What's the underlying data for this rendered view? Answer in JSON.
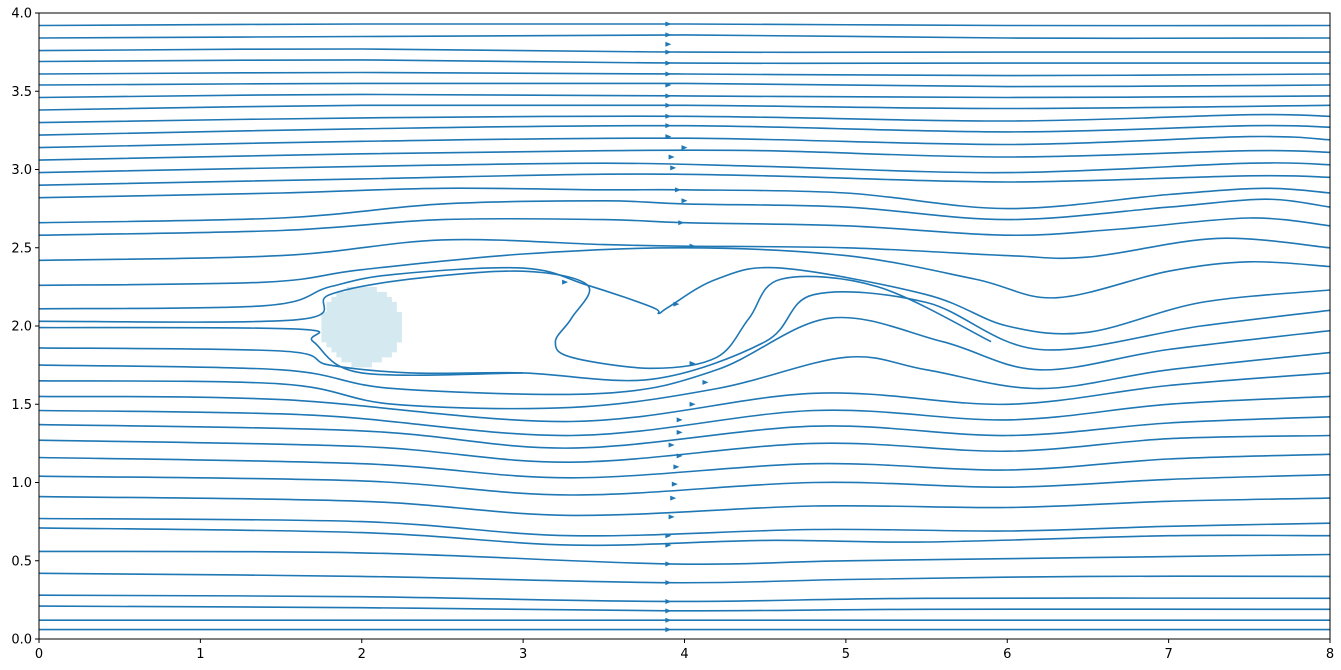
{
  "chart_data": {
    "type": "streamplot",
    "title": "",
    "xlabel": "",
    "ylabel": "",
    "xlim": [
      0,
      8
    ],
    "ylim": [
      0,
      4
    ],
    "xticks": [
      "0",
      "1",
      "2",
      "3",
      "4",
      "5",
      "6",
      "7",
      "8"
    ],
    "yticks": [
      "0.0",
      "0.5",
      "1.0",
      "1.5",
      "2.0",
      "2.5",
      "3.0",
      "3.5",
      "4.0"
    ],
    "grid": false,
    "line_color": "#1f77b4",
    "obstacle": {
      "shape": "circle",
      "center": [
        2.0,
        2.0
      ],
      "radius": 0.25,
      "color": "#d5eaf0"
    },
    "streamlines": [
      [
        [
          0,
          0.06
        ],
        [
          2,
          0.06
        ],
        [
          3.9,
          0.06
        ],
        [
          6,
          0.06
        ],
        [
          8,
          0.06
        ]
      ],
      [
        [
          0,
          0.12
        ],
        [
          2,
          0.12
        ],
        [
          3.9,
          0.12
        ],
        [
          6,
          0.12
        ],
        [
          8,
          0.12
        ]
      ],
      [
        [
          0,
          0.21
        ],
        [
          2,
          0.2
        ],
        [
          3.9,
          0.18
        ],
        [
          5.5,
          0.19
        ],
        [
          8,
          0.19
        ]
      ],
      [
        [
          0,
          0.28
        ],
        [
          2,
          0.27
        ],
        [
          3.9,
          0.24
        ],
        [
          5.5,
          0.26
        ],
        [
          8,
          0.26
        ]
      ],
      [
        [
          0,
          0.42
        ],
        [
          2,
          0.4
        ],
        [
          3.9,
          0.36
        ],
        [
          5,
          0.38
        ],
        [
          6.5,
          0.4
        ],
        [
          8,
          0.4
        ]
      ],
      [
        [
          0,
          0.56
        ],
        [
          2,
          0.55
        ],
        [
          3.9,
          0.48
        ],
        [
          5,
          0.5
        ],
        [
          6.5,
          0.52
        ],
        [
          8,
          0.54
        ]
      ],
      [
        [
          0,
          0.71
        ],
        [
          2,
          0.68
        ],
        [
          3.3,
          0.6
        ],
        [
          4.5,
          0.63
        ],
        [
          5.5,
          0.62
        ],
        [
          7,
          0.66
        ],
        [
          8,
          0.66
        ]
      ],
      [
        [
          0,
          0.77
        ],
        [
          2,
          0.75
        ],
        [
          3.3,
          0.66
        ],
        [
          4.8,
          0.7
        ],
        [
          6,
          0.69
        ],
        [
          7,
          0.72
        ],
        [
          8,
          0.74
        ]
      ],
      [
        [
          0,
          0.91
        ],
        [
          2,
          0.88
        ],
        [
          3.3,
          0.79
        ],
        [
          4.8,
          0.85
        ],
        [
          6,
          0.84
        ],
        [
          7,
          0.88
        ],
        [
          8,
          0.9
        ]
      ],
      [
        [
          0,
          1.04
        ],
        [
          2,
          1.01
        ],
        [
          3.3,
          0.92
        ],
        [
          4.8,
          1.0
        ],
        [
          6,
          0.97
        ],
        [
          7,
          1.02
        ],
        [
          8,
          1.05
        ]
      ],
      [
        [
          0,
          1.16
        ],
        [
          2,
          1.12
        ],
        [
          3.3,
          1.03
        ],
        [
          4.8,
          1.12
        ],
        [
          6,
          1.08
        ],
        [
          7,
          1.15
        ],
        [
          8,
          1.18
        ]
      ],
      [
        [
          0,
          1.27
        ],
        [
          2,
          1.23
        ],
        [
          3.3,
          1.13
        ],
        [
          4.8,
          1.25
        ],
        [
          6,
          1.2
        ],
        [
          7,
          1.28
        ],
        [
          8,
          1.3
        ]
      ],
      [
        [
          0,
          1.37
        ],
        [
          2,
          1.33
        ],
        [
          3.3,
          1.22
        ],
        [
          4.8,
          1.36
        ],
        [
          6,
          1.3
        ],
        [
          7,
          1.38
        ],
        [
          8,
          1.42
        ]
      ],
      [
        [
          0,
          1.46
        ],
        [
          1.7,
          1.43
        ],
        [
          3.3,
          1.3
        ],
        [
          4.8,
          1.46
        ],
        [
          6.0,
          1.4
        ],
        [
          7,
          1.5
        ],
        [
          8,
          1.55
        ]
      ],
      [
        [
          0,
          1.55
        ],
        [
          1.5,
          1.53
        ],
        [
          3.3,
          1.39
        ],
        [
          4.8,
          1.57
        ],
        [
          6.0,
          1.5
        ],
        [
          7,
          1.62
        ],
        [
          8,
          1.7
        ]
      ],
      [
        [
          0,
          1.65
        ],
        [
          1.5,
          1.63
        ],
        [
          2.2,
          1.5
        ],
        [
          3.3,
          1.48
        ],
        [
          4.2,
          1.6
        ],
        [
          5.0,
          1.8
        ],
        [
          5.5,
          1.72
        ],
        [
          6.2,
          1.6
        ],
        [
          7,
          1.72
        ],
        [
          8,
          1.83
        ]
      ],
      [
        [
          0,
          1.75
        ],
        [
          1.5,
          1.72
        ],
        [
          2.2,
          1.6
        ],
        [
          3.5,
          1.57
        ],
        [
          4.2,
          1.72
        ],
        [
          4.9,
          2.05
        ],
        [
          5.6,
          1.9
        ],
        [
          6.2,
          1.72
        ],
        [
          7,
          1.85
        ],
        [
          8,
          1.97
        ]
      ],
      [
        [
          0,
          1.86
        ],
        [
          1.5,
          1.84
        ],
        [
          1.8,
          1.75
        ],
        [
          2.3,
          1.7
        ],
        [
          3.0,
          1.7
        ],
        [
          3.8,
          1.66
        ],
        [
          4.5,
          1.9
        ],
        [
          4.8,
          2.2
        ],
        [
          5.5,
          2.15
        ],
        [
          6.2,
          1.85
        ],
        [
          7.2,
          2.0
        ],
        [
          8,
          2.1
        ]
      ],
      [
        [
          0,
          1.99
        ],
        [
          1.6,
          1.98
        ],
        [
          1.7,
          1.9
        ],
        [
          2.0,
          1.7
        ],
        [
          3.0,
          1.7
        ]
      ],
      [
        [
          0,
          2.03
        ],
        [
          1.6,
          2.04
        ],
        [
          1.8,
          2.2
        ],
        [
          2.3,
          2.3
        ],
        [
          3.0,
          2.35
        ],
        [
          3.4,
          2.26
        ],
        [
          3.3,
          2.05
        ],
        [
          3.2,
          1.9
        ],
        [
          3.3,
          1.8
        ],
        [
          3.8,
          1.73
        ],
        [
          4.2,
          1.8
        ],
        [
          4.4,
          2.05
        ],
        [
          4.6,
          2.3
        ],
        [
          5.2,
          2.25
        ],
        [
          5.9,
          1.9
        ]
      ],
      [
        [
          0,
          2.11
        ],
        [
          1.4,
          2.13
        ],
        [
          1.8,
          2.25
        ],
        [
          2.2,
          2.33
        ],
        [
          3.0,
          2.37
        ],
        [
          3.4,
          2.26
        ],
        [
          3.8,
          2.12
        ],
        [
          3.84,
          2.08
        ],
        [
          3.9,
          2.12
        ],
        [
          4.2,
          2.3
        ],
        [
          4.6,
          2.37
        ],
        [
          5.5,
          2.2
        ],
        [
          6.0,
          2.0
        ],
        [
          6.5,
          1.96
        ],
        [
          7.2,
          2.15
        ],
        [
          8,
          2.23
        ]
      ],
      [
        [
          0,
          2.26
        ],
        [
          1.4,
          2.28
        ],
        [
          2.0,
          2.36
        ],
        [
          3.0,
          2.46
        ],
        [
          4.0,
          2.5
        ],
        [
          5.0,
          2.45
        ],
        [
          5.8,
          2.3
        ],
        [
          6.3,
          2.18
        ],
        [
          7.0,
          2.35
        ],
        [
          7.5,
          2.41
        ],
        [
          8,
          2.38
        ]
      ],
      [
        [
          0,
          2.42
        ],
        [
          1.5,
          2.45
        ],
        [
          2.5,
          2.55
        ],
        [
          3.5,
          2.52
        ],
        [
          4.0,
          2.51
        ],
        [
          5.0,
          2.5
        ],
        [
          6.0,
          2.45
        ],
        [
          6.5,
          2.44
        ],
        [
          7.3,
          2.56
        ],
        [
          8,
          2.5
        ]
      ],
      [
        [
          0,
          2.58
        ],
        [
          1.5,
          2.61
        ],
        [
          2.5,
          2.68
        ],
        [
          3.5,
          2.68
        ],
        [
          4.0,
          2.66
        ],
        [
          5.0,
          2.64
        ],
        [
          6.0,
          2.58
        ],
        [
          6.7,
          2.62
        ],
        [
          7.5,
          2.69
        ],
        [
          8,
          2.64
        ]
      ],
      [
        [
          0,
          2.66
        ],
        [
          1.5,
          2.69
        ],
        [
          2.5,
          2.78
        ],
        [
          3.5,
          2.8
        ],
        [
          4.0,
          2.78
        ],
        [
          5.0,
          2.76
        ],
        [
          6.0,
          2.68
        ],
        [
          7.0,
          2.76
        ],
        [
          7.6,
          2.81
        ],
        [
          8,
          2.76
        ]
      ],
      [
        [
          0,
          2.82
        ],
        [
          1.5,
          2.85
        ],
        [
          2.5,
          2.88
        ],
        [
          3.5,
          2.87
        ],
        [
          4.0,
          2.87
        ],
        [
          5.0,
          2.85
        ],
        [
          6.0,
          2.75
        ],
        [
          7.0,
          2.84
        ],
        [
          7.6,
          2.88
        ],
        [
          8,
          2.85
        ]
      ],
      [
        [
          0,
          2.9
        ],
        [
          2,
          2.94
        ],
        [
          3.5,
          2.97
        ],
        [
          4.5,
          2.96
        ],
        [
          6,
          2.92
        ],
        [
          7.5,
          2.96
        ],
        [
          8,
          2.95
        ]
      ],
      [
        [
          0,
          2.98
        ],
        [
          2,
          3.02
        ],
        [
          3.5,
          3.04
        ],
        [
          4.5,
          3.02
        ],
        [
          6,
          2.98
        ],
        [
          7.5,
          3.04
        ],
        [
          8,
          3.03
        ]
      ],
      [
        [
          0,
          3.06
        ],
        [
          2,
          3.1
        ],
        [
          3.5,
          3.12
        ],
        [
          4.5,
          3.12
        ],
        [
          6,
          3.08
        ],
        [
          7.5,
          3.12
        ],
        [
          8,
          3.11
        ]
      ],
      [
        [
          0,
          3.14
        ],
        [
          2,
          3.18
        ],
        [
          4,
          3.2
        ],
        [
          6,
          3.16
        ],
        [
          7.5,
          3.21
        ],
        [
          8,
          3.19
        ]
      ],
      [
        [
          0,
          3.22
        ],
        [
          2,
          3.26
        ],
        [
          4,
          3.28
        ],
        [
          6,
          3.24
        ],
        [
          7.5,
          3.28
        ],
        [
          8,
          3.27
        ]
      ],
      [
        [
          0,
          3.3
        ],
        [
          2,
          3.33
        ],
        [
          4,
          3.34
        ],
        [
          6,
          3.31
        ],
        [
          7.5,
          3.35
        ],
        [
          8,
          3.34
        ]
      ],
      [
        [
          0,
          3.38
        ],
        [
          2,
          3.41
        ],
        [
          4,
          3.41
        ],
        [
          6,
          3.39
        ],
        [
          8,
          3.41
        ]
      ],
      [
        [
          0,
          3.46
        ],
        [
          2,
          3.48
        ],
        [
          4,
          3.47
        ],
        [
          6,
          3.46
        ],
        [
          8,
          3.47
        ]
      ],
      [
        [
          0,
          3.54
        ],
        [
          2,
          3.55
        ],
        [
          4,
          3.55
        ],
        [
          6,
          3.53
        ],
        [
          8,
          3.54
        ]
      ],
      [
        [
          0,
          3.61
        ],
        [
          2,
          3.62
        ],
        [
          4,
          3.61
        ],
        [
          6,
          3.6
        ],
        [
          8,
          3.61
        ]
      ],
      [
        [
          0,
          3.69
        ],
        [
          2,
          3.7
        ],
        [
          4,
          3.68
        ],
        [
          6,
          3.68
        ],
        [
          8,
          3.68
        ]
      ],
      [
        [
          0,
          3.76
        ],
        [
          2,
          3.77
        ],
        [
          4,
          3.75
        ],
        [
          6,
          3.75
        ],
        [
          8,
          3.75
        ]
      ],
      [
        [
          0,
          3.84
        ],
        [
          2,
          3.85
        ],
        [
          4,
          3.86
        ],
        [
          6,
          3.84
        ],
        [
          8,
          3.84
        ]
      ],
      [
        [
          0,
          3.92
        ],
        [
          2,
          3.93
        ],
        [
          4,
          3.93
        ],
        [
          6,
          3.92
        ],
        [
          8,
          3.92
        ]
      ]
    ],
    "arrows": [
      [
        3.9,
        0.06
      ],
      [
        3.9,
        0.12
      ],
      [
        3.9,
        0.18
      ],
      [
        3.9,
        0.24
      ],
      [
        3.9,
        0.36
      ],
      [
        3.9,
        0.48
      ],
      [
        3.9,
        0.6
      ],
      [
        3.9,
        0.66
      ],
      [
        3.92,
        0.78
      ],
      [
        3.93,
        0.9
      ],
      [
        3.94,
        0.99
      ],
      [
        3.95,
        1.1
      ],
      [
        3.97,
        1.17
      ],
      [
        3.92,
        1.24
      ],
      [
        3.97,
        1.32
      ],
      [
        3.97,
        1.4
      ],
      [
        4.05,
        1.5
      ],
      [
        4.13,
        1.64
      ],
      [
        4.05,
        1.76
      ],
      [
        3.95,
        2.14
      ],
      [
        4.05,
        2.51
      ],
      [
        3.98,
        2.66
      ],
      [
        4.0,
        2.8
      ],
      [
        3.96,
        2.87
      ],
      [
        3.93,
        3.01
      ],
      [
        3.92,
        3.08
      ],
      [
        4.0,
        3.14
      ],
      [
        3.9,
        3.21
      ],
      [
        3.9,
        3.28
      ],
      [
        3.9,
        3.34
      ],
      [
        3.9,
        3.41
      ],
      [
        3.9,
        3.47
      ],
      [
        3.9,
        3.54
      ],
      [
        3.9,
        3.61
      ],
      [
        3.9,
        3.68
      ],
      [
        3.9,
        3.75
      ],
      [
        3.9,
        3.8
      ],
      [
        3.9,
        3.86
      ],
      [
        3.9,
        3.93
      ],
      [
        3.26,
        2.28
      ]
    ]
  }
}
